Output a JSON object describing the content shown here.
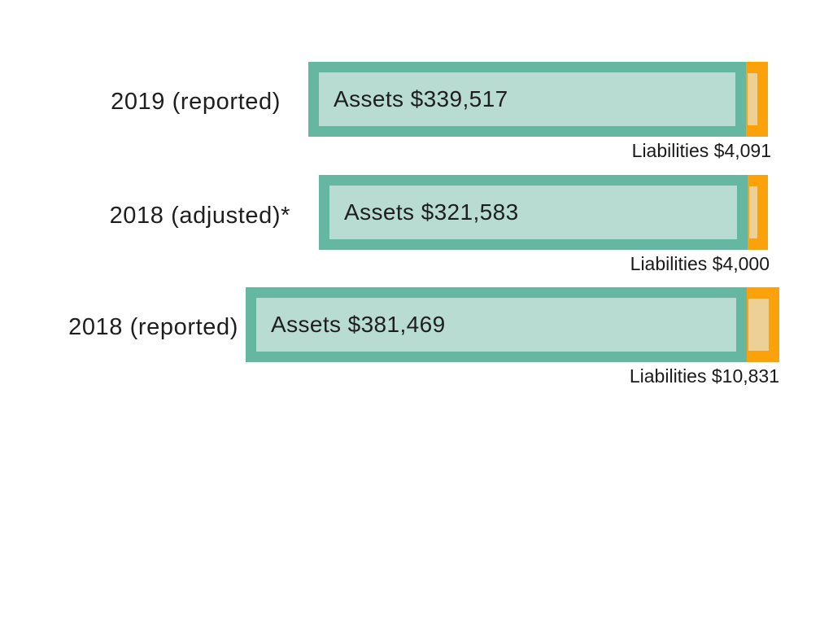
{
  "chart_data": {
    "type": "bar",
    "orientation": "horizontal",
    "stacked": true,
    "title": "",
    "xlabel": "",
    "ylabel": "",
    "legend_position": "none",
    "grid": false,
    "axes_shown": false,
    "categories": [
      "2019 (reported)",
      "2018 (adjusted)*",
      "2018 (reported)"
    ],
    "series": [
      {
        "name": "Assets",
        "values": [
          339517,
          321583,
          381469
        ]
      },
      {
        "name": "Liabilities",
        "values": [
          4091,
          4000,
          10831
        ]
      }
    ],
    "rows": [
      {
        "category": "2019 (reported)",
        "assets_value": 339517,
        "liabilities_value": 4091,
        "assets_label": "Assets $339,517",
        "liabilities_label": "Liabilities $4,091"
      },
      {
        "category": "2018 (adjusted)*",
        "assets_value": 321583,
        "liabilities_value": 4000,
        "assets_label": "Assets $321,583",
        "liabilities_label": "Liabilities $4,000"
      },
      {
        "category": "2018 (reported)",
        "assets_value": 381469,
        "liabilities_value": 10831,
        "assets_label": "Assets $381,469",
        "liabilities_label": "Liabilities $10,831"
      }
    ],
    "colors": {
      "assets_border": "#65b7a2",
      "assets_fill": "#b8dcd1",
      "liabilities_fill": "#fba20a",
      "liabilities_inner_fill": "#edd096",
      "text": "#1e1e1e",
      "background": "#ffffff"
    }
  }
}
